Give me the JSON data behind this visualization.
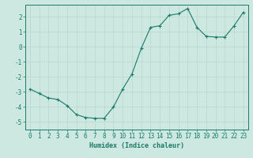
{
  "x": [
    0,
    1,
    2,
    3,
    4,
    5,
    6,
    7,
    8,
    9,
    10,
    11,
    12,
    13,
    14,
    15,
    16,
    17,
    18,
    19,
    20,
    21,
    22,
    23
  ],
  "y": [
    -2.8,
    -3.1,
    -3.4,
    -3.5,
    -3.9,
    -4.5,
    -4.7,
    -4.75,
    -4.75,
    -4.0,
    -2.8,
    -1.8,
    -0.1,
    1.3,
    1.4,
    2.1,
    2.2,
    2.55,
    1.3,
    0.7,
    0.65,
    0.65,
    1.4,
    2.3
  ],
  "line_color": "#1a7a6a",
  "marker_color": "#1a7a6a",
  "bg_color": "#cce8e0",
  "grid_color": "#b8d8d0",
  "xlabel": "Humidex (Indice chaleur)",
  "ylim": [
    -5.5,
    2.8
  ],
  "xlim": [
    -0.5,
    23.5
  ],
  "yticks": [
    -5,
    -4,
    -3,
    -2,
    -1,
    0,
    1,
    2
  ],
  "xticks": [
    0,
    1,
    2,
    3,
    4,
    5,
    6,
    7,
    8,
    9,
    10,
    11,
    12,
    13,
    14,
    15,
    16,
    17,
    18,
    19,
    20,
    21,
    22,
    23
  ],
  "tick_color": "#1a7a6a",
  "label_fontsize": 6.0,
  "tick_fontsize": 5.5
}
